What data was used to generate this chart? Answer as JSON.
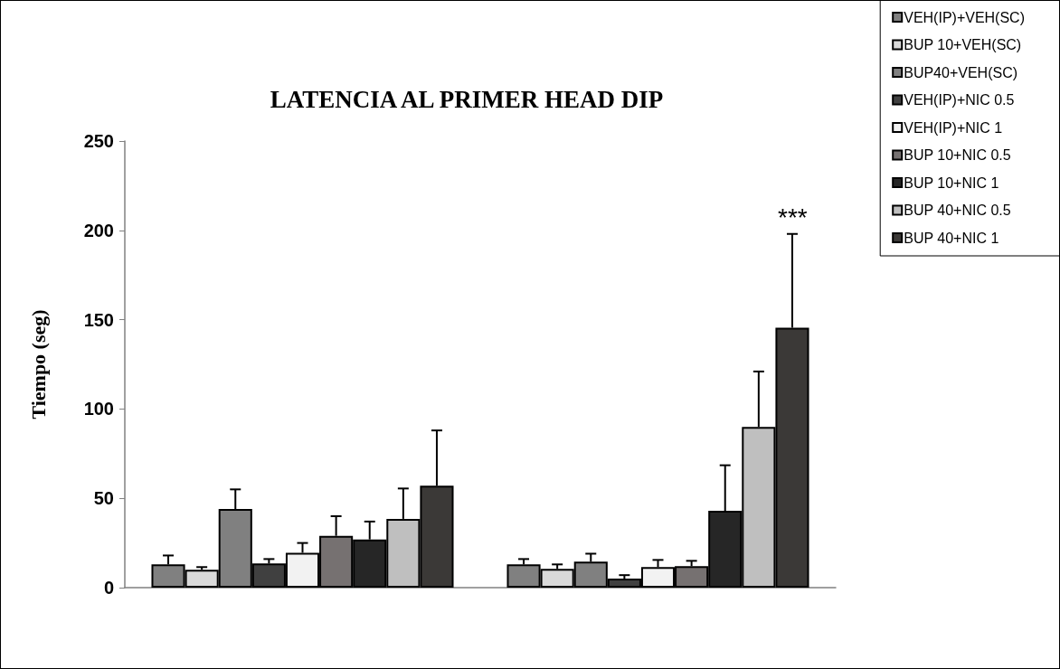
{
  "chart_data": {
    "type": "bar",
    "title": "LATENCIA AL PRIMER HEAD DIP",
    "ylabel": "Tiempo (seg)",
    "categories": [
      null,
      null
    ],
    "series": [
      {
        "name": "VEH(IP)+VEH(SC)",
        "color": "#808080",
        "values": [
          13,
          13
        ],
        "errors": [
          5,
          3
        ]
      },
      {
        "name": "BUP 10+VEH(SC)",
        "color": "#d9d9d9",
        "values": [
          10,
          10.5
        ],
        "errors": [
          1.5,
          2.5
        ]
      },
      {
        "name": "BUP40+VEH(SC)",
        "color": "#808080",
        "values": [
          44,
          14.5
        ],
        "errors": [
          11,
          4.5
        ]
      },
      {
        "name": "VEH(IP)+NIC 0.5",
        "color": "#404040",
        "values": [
          13.5,
          5
        ],
        "errors": [
          2.5,
          2
        ]
      },
      {
        "name": "VEH(IP)+NIC 1",
        "color": "#f2f2f2",
        "values": [
          19.5,
          11.5
        ],
        "errors": [
          5.5,
          4
        ]
      },
      {
        "name": "BUP 10+NIC 0.5",
        "color": "#767171",
        "values": [
          29,
          12
        ],
        "errors": [
          11,
          3
        ]
      },
      {
        "name": "BUP 10+NIC 1",
        "color": "#262626",
        "values": [
          27,
          43
        ],
        "errors": [
          10,
          25.5
        ]
      },
      {
        "name": "BUP 40+NIC 0.5",
        "color": "#bfbfbf",
        "values": [
          38.5,
          90
        ],
        "errors": [
          17,
          31
        ]
      },
      {
        "name": "BUP 40+NIC 1",
        "color": "#3b3937",
        "values": [
          57,
          145.5
        ],
        "errors": [
          31,
          52.5
        ]
      }
    ],
    "ylim": [
      0,
      250
    ],
    "yticks": [
      0,
      50,
      100,
      150,
      200,
      250
    ],
    "annotations": [
      {
        "text": "***",
        "y": 198
      }
    ],
    "grid": false,
    "legend": "top right"
  }
}
